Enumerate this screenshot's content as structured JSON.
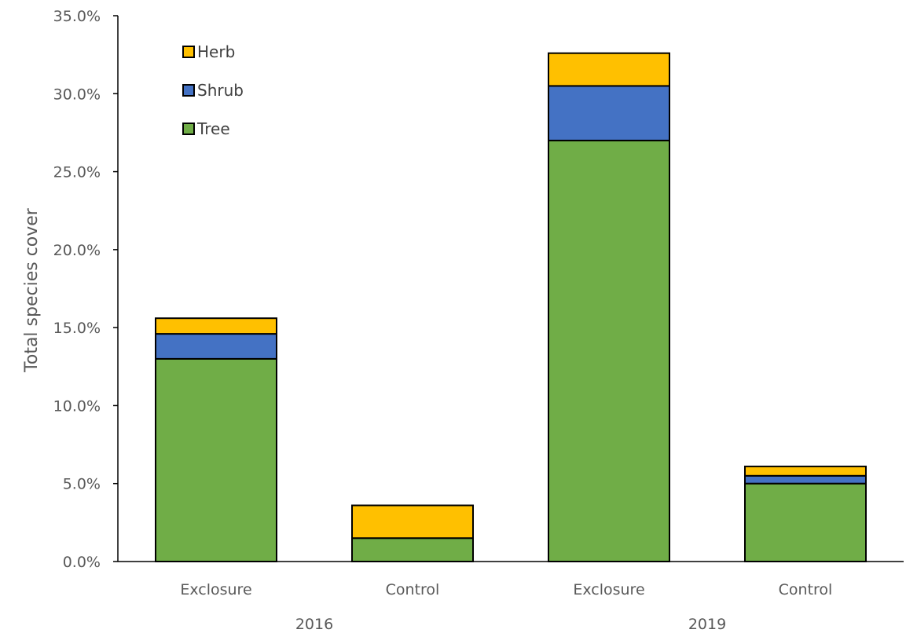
{
  "chart_data": {
    "type": "bar",
    "stacked": true,
    "title": "",
    "xlabel": "",
    "ylabel": "Total species cover",
    "ylim": [
      0,
      35
    ],
    "y_unit": "%",
    "y_ticks": [
      "0.0%",
      "5.0%",
      "10.0%",
      "15.0%",
      "20.0%",
      "25.0%",
      "30.0%",
      "35.0%"
    ],
    "categories": [
      "Exclosure",
      "Control",
      "Exclosure",
      "Control"
    ],
    "groups": [
      {
        "label": "2016",
        "categories": [
          0,
          1
        ]
      },
      {
        "label": "2019",
        "categories": [
          2,
          3
        ]
      }
    ],
    "series": [
      {
        "name": "Tree",
        "color": "#70ad47",
        "values": [
          13.0,
          1.5,
          27.0,
          5.0
        ]
      },
      {
        "name": "Shrub",
        "color": "#4472c4",
        "values": [
          1.6,
          0.0,
          3.5,
          0.5
        ]
      },
      {
        "name": "Herb",
        "color": "#ffc000",
        "values": [
          1.0,
          2.1,
          2.1,
          0.6
        ]
      }
    ],
    "legend": {
      "position": "top-left",
      "order": [
        "Herb",
        "Shrub",
        "Tree"
      ]
    },
    "grid": false
  }
}
